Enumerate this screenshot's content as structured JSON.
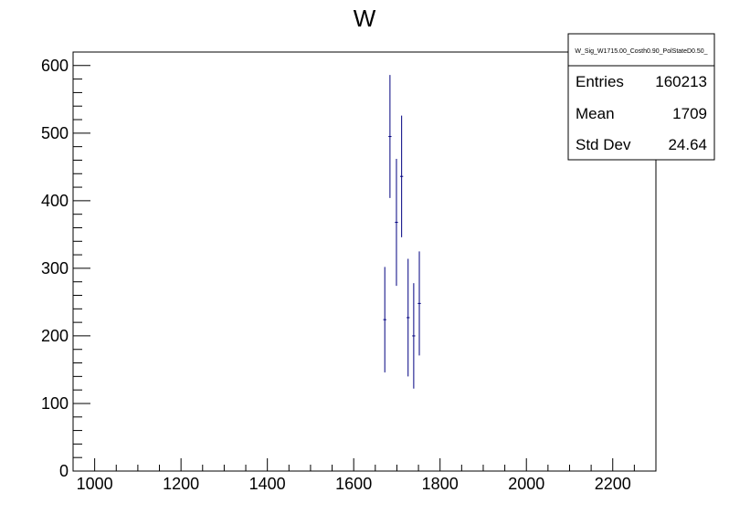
{
  "chart_data": {
    "type": "scatter",
    "title": "W",
    "xlabel": "",
    "ylabel": "",
    "xlim": [
      950,
      2300
    ],
    "ylim": [
      0,
      620
    ],
    "x_ticks": [
      1000,
      1200,
      1400,
      1600,
      1800,
      2000,
      2200
    ],
    "y_ticks": [
      0,
      100,
      200,
      300,
      400,
      500,
      600
    ],
    "grid": false,
    "marker_color": "#000080",
    "points": [
      {
        "x": 1672,
        "y": 224,
        "err": 78,
        "half_width": 3.5
      },
      {
        "x": 1684,
        "y": 495,
        "err": 91,
        "half_width": 3.5
      },
      {
        "x": 1699,
        "y": 368,
        "err": 94,
        "half_width": 3.5
      },
      {
        "x": 1711,
        "y": 436,
        "err": 90,
        "half_width": 3.5
      },
      {
        "x": 1726,
        "y": 227,
        "err": 87,
        "half_width": 3.5
      },
      {
        "x": 1739,
        "y": 200,
        "err": 78,
        "half_width": 3.5
      },
      {
        "x": 1752,
        "y": 248,
        "err": 77,
        "half_width": 3.5
      }
    ],
    "stats_box": {
      "name": "W_Sig_W1715.00_Costh0.90_PolStateD0.50_",
      "rows": [
        {
          "label": "Entries",
          "value": "160213"
        },
        {
          "label": "Mean",
          "value": "1709"
        },
        {
          "label": "Std Dev",
          "value": "24.64"
        }
      ],
      "placement": "top-right"
    }
  }
}
